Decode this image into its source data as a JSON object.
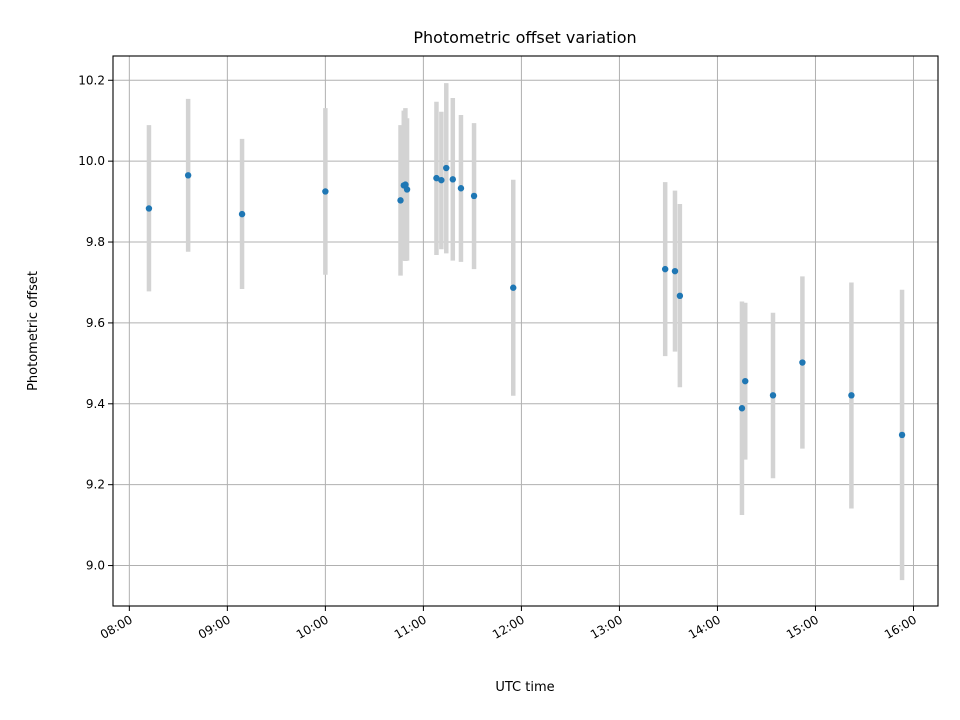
{
  "chart_data": {
    "type": "scatter",
    "title": "Photometric offset variation",
    "xlabel": "UTC time",
    "ylabel": "Photometric offset",
    "x_ticks": [
      "08:00",
      "09:00",
      "10:00",
      "11:00",
      "12:00",
      "13:00",
      "14:00",
      "15:00",
      "16:00"
    ],
    "y_ticks": [
      "9.0",
      "9.2",
      "9.4",
      "9.6",
      "9.8",
      "10.0",
      "10.2"
    ],
    "xlim": [
      "07:50",
      "16:15"
    ],
    "ylim": [
      8.9,
      10.26
    ],
    "grid": true,
    "marker_color": "#1f77b4",
    "errorbar_color": "#d3d3d3",
    "points": [
      {
        "x": "08:12",
        "y": 9.883,
        "low": 9.678,
        "high": 10.089
      },
      {
        "x": "08:36",
        "y": 9.965,
        "low": 9.776,
        "high": 10.154
      },
      {
        "x": "09:09",
        "y": 9.869,
        "low": 9.684,
        "high": 10.055
      },
      {
        "x": "10:00",
        "y": 9.925,
        "low": 9.719,
        "high": 10.131
      },
      {
        "x": "10:46",
        "y": 9.903,
        "low": 9.717,
        "high": 10.089
      },
      {
        "x": "10:48",
        "y": 9.94,
        "low": 9.754,
        "high": 10.125
      },
      {
        "x": "10:49",
        "y": 9.942,
        "low": 9.753,
        "high": 10.131
      },
      {
        "x": "10:50",
        "y": 9.93,
        "low": 9.754,
        "high": 10.106
      },
      {
        "x": "11:08",
        "y": 9.958,
        "low": 9.768,
        "high": 10.147
      },
      {
        "x": "11:11",
        "y": 9.953,
        "low": 9.782,
        "high": 10.122
      },
      {
        "x": "11:14",
        "y": 9.983,
        "low": 9.772,
        "high": 10.193
      },
      {
        "x": "11:18",
        "y": 9.955,
        "low": 9.754,
        "high": 10.156
      },
      {
        "x": "11:23",
        "y": 9.933,
        "low": 9.751,
        "high": 10.114
      },
      {
        "x": "11:31",
        "y": 9.914,
        "low": 9.733,
        "high": 10.094
      },
      {
        "x": "11:55",
        "y": 9.687,
        "low": 9.42,
        "high": 9.954
      },
      {
        "x": "13:28",
        "y": 9.733,
        "low": 9.518,
        "high": 9.948
      },
      {
        "x": "13:34",
        "y": 9.728,
        "low": 9.529,
        "high": 9.927
      },
      {
        "x": "13:37",
        "y": 9.667,
        "low": 9.441,
        "high": 9.894
      },
      {
        "x": "14:15",
        "y": 9.389,
        "low": 9.125,
        "high": 9.653
      },
      {
        "x": "14:17",
        "y": 9.456,
        "low": 9.262,
        "high": 9.65
      },
      {
        "x": "14:34",
        "y": 9.421,
        "low": 9.216,
        "high": 9.625
      },
      {
        "x": "14:52",
        "y": 9.502,
        "low": 9.289,
        "high": 9.715
      },
      {
        "x": "15:22",
        "y": 9.421,
        "low": 9.141,
        "high": 9.7
      },
      {
        "x": "15:53",
        "y": 9.323,
        "low": 8.964,
        "high": 9.682
      }
    ]
  }
}
